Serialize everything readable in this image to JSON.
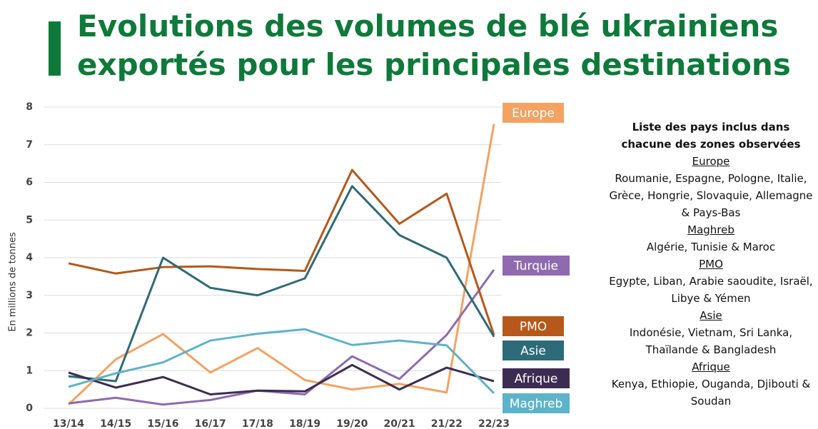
{
  "chart_data": {
    "type": "line",
    "title": "Evolutions des volumes de blé ukrainiens exportés pour les principales destinations",
    "y_label": "En millions de tonnes",
    "categories": [
      "13/14",
      "14/15",
      "15/16",
      "16/17",
      "17/18",
      "18/19",
      "19/20",
      "20/21",
      "21/22",
      "22/23"
    ],
    "ylim": [
      0,
      8
    ],
    "yticks": [
      0,
      1,
      2,
      3,
      4,
      5,
      6,
      7,
      8
    ],
    "grid": true,
    "series": [
      {
        "name": "Europe",
        "color": "#f4a261",
        "values": [
          0.1,
          1.3,
          1.97,
          0.95,
          1.6,
          0.75,
          0.5,
          0.65,
          0.42,
          7.55
        ]
      },
      {
        "name": "Turquie",
        "color": "#8e6bb0",
        "values": [
          0.13,
          0.28,
          0.1,
          0.22,
          0.47,
          0.37,
          1.38,
          0.78,
          1.95,
          3.68
        ]
      },
      {
        "name": "PMO",
        "color": "#b5581a",
        "values": [
          3.85,
          3.58,
          3.75,
          3.77,
          3.7,
          3.65,
          6.33,
          4.9,
          5.7,
          1.95
        ]
      },
      {
        "name": "Asie",
        "color": "#2e6b78",
        "values": [
          0.85,
          0.72,
          4.0,
          3.2,
          3.0,
          3.45,
          5.9,
          4.6,
          4.0,
          1.9
        ]
      },
      {
        "name": "Afrique",
        "color": "#3d2c52",
        "values": [
          0.95,
          0.55,
          0.83,
          0.37,
          0.47,
          0.45,
          1.15,
          0.5,
          1.08,
          0.72
        ]
      },
      {
        "name": "Maghreb",
        "color": "#5db3c9",
        "values": [
          0.57,
          0.93,
          1.22,
          1.8,
          1.98,
          2.1,
          1.68,
          1.8,
          1.67,
          0.4
        ]
      }
    ]
  },
  "legend_panel": {
    "title": "Liste des pays inclus dans chacune des zones observées",
    "zones": [
      {
        "name": "Europe",
        "countries": "Roumanie, Espagne, Pologne, Italie, Grèce, Hongrie, Slovaquie, Allemagne & Pays-Bas"
      },
      {
        "name": "Maghreb",
        "countries": "Algérie, Tunisie & Maroc"
      },
      {
        "name": "PMO",
        "countries": "Egypte, Liban, Arabie saoudite, Israël, Libye & Yémen"
      },
      {
        "name": "Asie",
        "countries": "Indonésie, Vietnam, Sri Lanka, Thaïlande & Bangladesh"
      },
      {
        "name": "Afrique",
        "countries": "Kenya, Ethiopie, Ouganda, Djibouti & Soudan"
      }
    ]
  }
}
